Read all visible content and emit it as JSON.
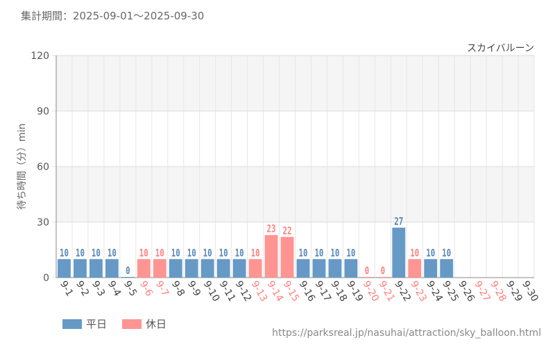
{
  "period_text": "集計期間：2025-09-01～2025-09-30",
  "source_url": "https://parksreal.jp/nasuhai/attraction/sky_balloon.html",
  "legend": [
    {
      "label": "平日",
      "color": "#6699c6"
    },
    {
      "label": "休日",
      "color": "#ff9593"
    }
  ],
  "chart_data": {
    "type": "bar",
    "title": "スカイバルーン",
    "ylabel": "待ち時間（分）min",
    "ylim": [
      0,
      120
    ],
    "yticks": [
      0,
      30,
      60,
      90,
      120
    ],
    "categories": [
      "9-1",
      "9-2",
      "9-3",
      "9-4",
      "9-5",
      "9-6",
      "9-7",
      "9-8",
      "9-9",
      "9-10",
      "9-11",
      "9-12",
      "9-13",
      "9-14",
      "9-15",
      "9-16",
      "9-17",
      "9-18",
      "9-19",
      "9-20",
      "9-21",
      "9-22",
      "9-23",
      "9-24",
      "9-25",
      "9-26",
      "9-27",
      "9-28",
      "9-29",
      "9-30"
    ],
    "values": [
      10,
      10,
      10,
      10,
      0,
      10,
      10,
      10,
      10,
      10,
      10,
      10,
      10,
      23,
      22,
      10,
      10,
      10,
      10,
      0,
      0,
      27,
      10,
      10,
      10,
      null,
      null,
      null,
      null,
      null
    ],
    "day_type": [
      "平日",
      "平日",
      "平日",
      "平日",
      "平日",
      "休日",
      "休日",
      "平日",
      "平日",
      "平日",
      "平日",
      "平日",
      "休日",
      "休日",
      "休日",
      "平日",
      "平日",
      "平日",
      "平日",
      "休日",
      "休日",
      "平日",
      "休日",
      "平日",
      "平日",
      "平日",
      "休日",
      "休日",
      "平日",
      "平日"
    ],
    "colors": {
      "weekday": "#6699c6",
      "holiday": "#ff9593",
      "weekday_label": "#444444",
      "holiday_label": "#ff7f7f"
    }
  }
}
